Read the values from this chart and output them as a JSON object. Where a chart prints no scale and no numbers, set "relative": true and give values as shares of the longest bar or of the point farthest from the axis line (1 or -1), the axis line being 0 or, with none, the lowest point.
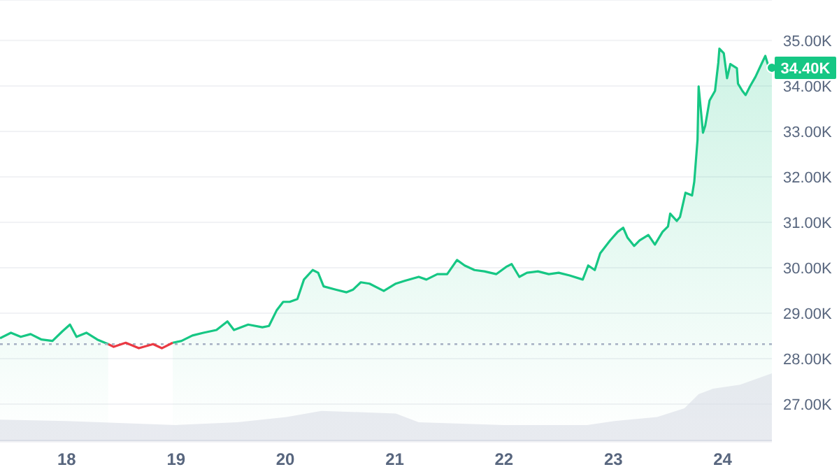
{
  "chart_data": [
    {
      "type": "area",
      "xlim": [
        17.39,
        24.45
      ],
      "xticks": [
        18,
        19,
        20,
        21,
        22,
        23,
        24
      ],
      "ylim": [
        26170,
        35890
      ],
      "yticks": [
        {
          "value": 27000,
          "label": "27.00K"
        },
        {
          "value": 28000,
          "label": "28.00K"
        },
        {
          "value": 29000,
          "label": "29.00K"
        },
        {
          "value": 30000,
          "label": "30.00K"
        },
        {
          "value": 31000,
          "label": "31.00K"
        },
        {
          "value": 32000,
          "label": "32.00K"
        },
        {
          "value": 33000,
          "label": "33.00K"
        },
        {
          "value": 34000,
          "label": "34.00K"
        },
        {
          "value": 35000,
          "label": "35.00K"
        }
      ],
      "grid": "y",
      "ref_lines": [
        {
          "axis": "y",
          "value": 28320,
          "label": null,
          "color": "#a6b0c3",
          "line_style": "dotted"
        }
      ],
      "annotations": [
        {
          "text": "34.40K",
          "x": 24.45,
          "y": 34400
        }
      ],
      "series": [
        {
          "color": "#16c784",
          "x": [
            17.39,
            17.49,
            17.58,
            17.67,
            17.77,
            17.87,
            17.96,
            18.03,
            18.09,
            18.18,
            18.28,
            18.38,
            18.43,
            18.54,
            18.66,
            18.79,
            18.87,
            18.97,
            19.05,
            19.15,
            19.25,
            19.37,
            19.47,
            19.53,
            19.66,
            19.79,
            19.85,
            19.92,
            19.98,
            20.04,
            20.11,
            20.17,
            20.25,
            20.3,
            20.35,
            20.46,
            20.56,
            20.62,
            20.69,
            20.77,
            20.9,
            21.01,
            21.09,
            21.22,
            21.29,
            21.39,
            21.48,
            21.57,
            21.64,
            21.73,
            21.82,
            21.93,
            22.02,
            22.07,
            22.14,
            22.21,
            22.31,
            22.41,
            22.5,
            22.6,
            22.72,
            22.77,
            22.83,
            22.88,
            22.97,
            23.04,
            23.09,
            23.13,
            23.19,
            23.24,
            23.32,
            23.38,
            23.45,
            23.5,
            23.52,
            23.58,
            23.61,
            23.66,
            23.72,
            23.74,
            23.77,
            23.78,
            23.82,
            23.84,
            23.88,
            23.93,
            23.96,
            23.97,
            24.01,
            24.04,
            24.07,
            24.13,
            24.14,
            24.18,
            24.21,
            24.25,
            24.3,
            24.36,
            24.39,
            24.42,
            24.45
          ],
          "values": [
            28450,
            28570,
            28480,
            28540,
            28420,
            28390,
            28600,
            28750,
            28480,
            28570,
            28420,
            28320,
            null,
            null,
            null,
            null,
            null,
            28350,
            28390,
            28510,
            28570,
            28630,
            28820,
            28630,
            28750,
            28690,
            28720,
            29060,
            29250,
            29250,
            29310,
            29740,
            29950,
            29890,
            29590,
            29520,
            29460,
            29520,
            29680,
            29650,
            29490,
            29650,
            29710,
            29800,
            29740,
            29860,
            29860,
            30170,
            30050,
            29950,
            29920,
            29860,
            30020,
            30080,
            29800,
            29890,
            29920,
            29860,
            29890,
            29830,
            29740,
            30050,
            29950,
            30320,
            30600,
            30790,
            30880,
            30660,
            30480,
            30600,
            30720,
            30510,
            30790,
            30910,
            31190,
            31030,
            31120,
            31650,
            31590,
            31890,
            32820,
            33990,
            32970,
            33120,
            33680,
            33890,
            34510,
            34820,
            34720,
            34170,
            34480,
            34390,
            34050,
            33890,
            33800,
            33990,
            34200,
            34510,
            34660,
            34420,
            34400
          ]
        },
        {
          "type": "line",
          "color": "#ea3943",
          "x": [
            18.38,
            18.43,
            18.54,
            18.66,
            18.79,
            18.87,
            18.97
          ],
          "values": [
            28320,
            28260,
            28350,
            28230,
            28320,
            28230,
            28350
          ]
        }
      ]
    },
    {
      "type": "area",
      "relative": true,
      "xlim": [
        17.39,
        24.45
      ],
      "series": [
        {
          "color": "#d9dde6",
          "x": [
            17.39,
            18,
            19,
            19.56,
            20.01,
            20.33,
            20.71,
            21.01,
            21.22,
            22,
            22.76,
            23.01,
            23.4,
            23.65,
            23.78,
            23.91,
            24.16,
            24.45
          ],
          "values": [
            0.31,
            0.29,
            0.23,
            0.27,
            0.35,
            0.44,
            0.42,
            0.4,
            0.27,
            0.23,
            0.23,
            0.29,
            0.35,
            0.48,
            0.69,
            0.77,
            0.83,
            1
          ]
        }
      ]
    }
  ]
}
